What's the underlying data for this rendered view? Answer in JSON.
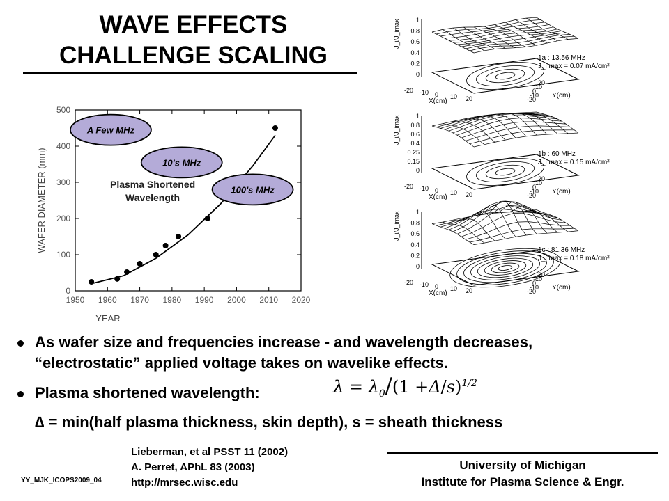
{
  "slide": {
    "title_line1": "WAVE EFFECTS",
    "title_line2": "CHALLENGE SCALING",
    "bullets": [
      {
        "line1": "As wafer size and frequencies increase - and wavelength decreases,",
        "line2": "“electrostatic” applied voltage takes on wavelike effects."
      },
      {
        "line1": "Plasma shortened wavelength:"
      }
    ],
    "delta_line": "∆ = min(half plasma thickness, skin depth), s = sheath thickness",
    "formula": {
      "lhs": "λ",
      "eq": "=",
      "l0": "λ",
      "l0_sub": "0",
      "paren_open": "(1 +",
      "delta": "Δ",
      "slash": "/",
      "s": "s",
      "paren_close": ")",
      "exp": "1/2"
    },
    "references": [
      "Lieberman, et al PSST 11 (2002)",
      "A. Perret, APhL 83 (2003)",
      "http://mrsec.wisc.edu"
    ],
    "footer_id": "YY_MJK_ICOPS2009_04",
    "university_line1": "University of Michigan",
    "university_line2": "Institute for Plasma Science & Engr."
  },
  "chart_data": {
    "type": "scatter",
    "xlabel": "YEAR",
    "ylabel": "WAFER DIAMETER (mm)",
    "xlim": [
      1950,
      2020
    ],
    "ylim": [
      0,
      500
    ],
    "xticks": [
      1950,
      1960,
      1970,
      1980,
      1990,
      2000,
      2010,
      2020
    ],
    "yticks": [
      0,
      100,
      200,
      300,
      400,
      500
    ],
    "points": [
      {
        "x": 1955,
        "y": 25
      },
      {
        "x": 1963,
        "y": 33
      },
      {
        "x": 1966,
        "y": 52
      },
      {
        "x": 1970,
        "y": 75
      },
      {
        "x": 1975,
        "y": 100
      },
      {
        "x": 1978,
        "y": 125
      },
      {
        "x": 1982,
        "y": 150
      },
      {
        "x": 1991,
        "y": 200
      },
      {
        "x": 2012,
        "y": 450
      }
    ],
    "trend": [
      {
        "x": 1955,
        "y": 20
      },
      {
        "x": 1965,
        "y": 42
      },
      {
        "x": 1975,
        "y": 90
      },
      {
        "x": 1985,
        "y": 155
      },
      {
        "x": 1995,
        "y": 240
      },
      {
        "x": 2005,
        "y": 345
      },
      {
        "x": 2012,
        "y": 430
      }
    ],
    "annotations": [
      {
        "text": "A Few MHz",
        "x": 1961,
        "y": 445,
        "ellipse": true
      },
      {
        "text": "10's MHz",
        "x": 1983,
        "y": 355,
        "ellipse": true
      },
      {
        "text": "100's MHz",
        "x": 2005,
        "y": 280,
        "ellipse": true
      },
      {
        "text": "Plasma Shortened",
        "x": 1974,
        "y": 285,
        "ellipse": false
      },
      {
        "text": "Wavelength",
        "x": 1974,
        "y": 248,
        "ellipse": false
      }
    ]
  },
  "panels": [
    {
      "label": "1a : 13.56 MHz",
      "jmax": "J_i max = 0.07 mA/cm²",
      "zlabel": "J_i/J_imax",
      "zticks": [
        "1",
        "0.8",
        "0.6",
        "0.4",
        "0.2",
        "0"
      ],
      "xlabel": "X(cm)",
      "ylabel": "Y(cm)",
      "xticks": [
        "-20",
        "-10",
        "0",
        "10",
        "20"
      ],
      "yticks": [
        "20",
        "10",
        "0",
        "-10",
        "-20"
      ],
      "shape": "flat"
    },
    {
      "label": "1b : 60 MHz",
      "jmax": "J_i max = 0.15 mA/cm²",
      "zlabel": "J_i/J_imax",
      "zticks": [
        "1",
        "0.8",
        "0.6",
        "0.4",
        "0.25",
        "0.15",
        "0"
      ],
      "xlabel": "X(cm)",
      "ylabel": "Y(cm)",
      "xticks": [
        "-20",
        "-10",
        "0",
        "10",
        "20"
      ],
      "yticks": [
        "20",
        "10",
        "0",
        "-10",
        "-20"
      ],
      "shape": "dome"
    },
    {
      "label": "1c : 81.36 MHz",
      "jmax": "J_i max = 0.18 mA/cm²",
      "zlabel": "J_i/J_imax",
      "zticks": [
        "1",
        "0.8",
        "0.6",
        "0.4",
        "0.2",
        "0"
      ],
      "xlabel": "X(cm)",
      "ylabel": "Y(cm)",
      "xticks": [
        "-20",
        "-10",
        "0",
        "10",
        "20"
      ],
      "yticks": [
        "20",
        "10",
        "0",
        "-10",
        "-20"
      ],
      "shape": "peak"
    }
  ]
}
